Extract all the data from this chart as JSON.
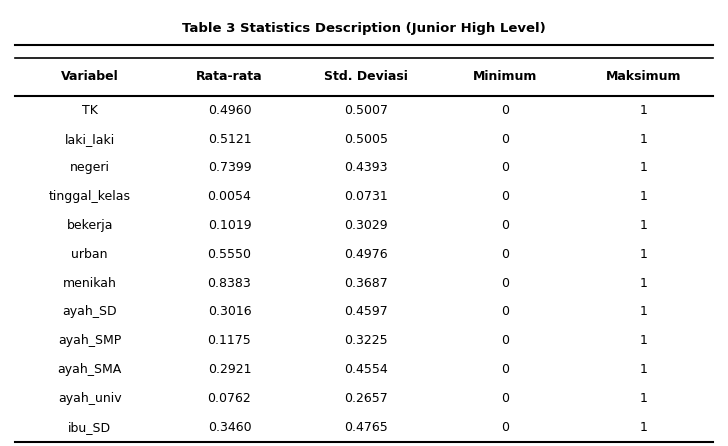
{
  "title": "Table 3 Statistics Description (Junior High Level)",
  "columns": [
    "Variabel",
    "Rata-rata",
    "Std. Deviasi",
    "Minimum",
    "Maksimum"
  ],
  "rows": [
    [
      "TK",
      "0.4960",
      "0.5007",
      "0",
      "1"
    ],
    [
      "laki_laki",
      "0.5121",
      "0.5005",
      "0",
      "1"
    ],
    [
      "negeri",
      "0.7399",
      "0.4393",
      "0",
      "1"
    ],
    [
      "tinggal_kelas",
      "0.0054",
      "0.0731",
      "0",
      "1"
    ],
    [
      "bekerja",
      "0.1019",
      "0.3029",
      "0",
      "1"
    ],
    [
      "urban",
      "0.5550",
      "0.4976",
      "0",
      "1"
    ],
    [
      "menikah",
      "0.8383",
      "0.3687",
      "0",
      "1"
    ],
    [
      "ayah_SD",
      "0.3016",
      "0.4597",
      "0",
      "1"
    ],
    [
      "ayah_SMP",
      "0.1175",
      "0.3225",
      "0",
      "1"
    ],
    [
      "ayah_SMA",
      "0.2921",
      "0.4554",
      "0",
      "1"
    ],
    [
      "ayah_univ",
      "0.0762",
      "0.2657",
      "0",
      "1"
    ],
    [
      "ibu_SD",
      "0.3460",
      "0.4765",
      "0",
      "1"
    ]
  ],
  "background_color": "#ffffff",
  "title_fontsize": 9.5,
  "header_fontsize": 9,
  "cell_fontsize": 9,
  "fig_width": 7.28,
  "fig_height": 4.46,
  "dpi": 100
}
